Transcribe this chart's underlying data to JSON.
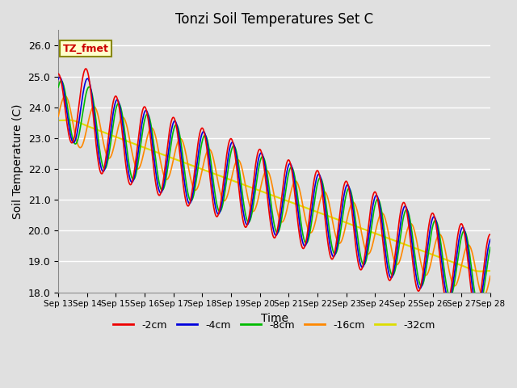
{
  "title": "Tonzi Soil Temperatures Set C",
  "xlabel": "Time",
  "ylabel": "Soil Temperature (C)",
  "ylim": [
    18.0,
    26.5
  ],
  "yticks": [
    18.0,
    19.0,
    20.0,
    21.0,
    22.0,
    23.0,
    24.0,
    25.0,
    26.0
  ],
  "xtick_labels": [
    "Sep 13",
    "Sep 14",
    "Sep 15",
    "Sep 16",
    "Sep 17",
    "Sep 18",
    "Sep 19",
    "Sep 20",
    "Sep 21",
    "Sep 22",
    "Sep 23",
    "Sep 24",
    "Sep 25",
    "Sep 26",
    "Sep 27",
    "Sep 28"
  ],
  "annotation_text": "TZ_fmet",
  "annotation_color": "#cc0000",
  "annotation_bg": "#ffffcc",
  "bg_color": "#e0e0e0",
  "grid_color": "#ffffff",
  "legend_entries": [
    "-2cm",
    "-4cm",
    "-8cm",
    "-16cm",
    "-32cm"
  ],
  "line_colors": [
    "#ee0000",
    "#0000dd",
    "#00bb00",
    "#ff8800",
    "#dddd00"
  ],
  "line_widths": [
    1.2,
    1.2,
    1.2,
    1.2,
    1.5
  ],
  "n_days": 15,
  "n_per_day": 96,
  "start_day": 13
}
